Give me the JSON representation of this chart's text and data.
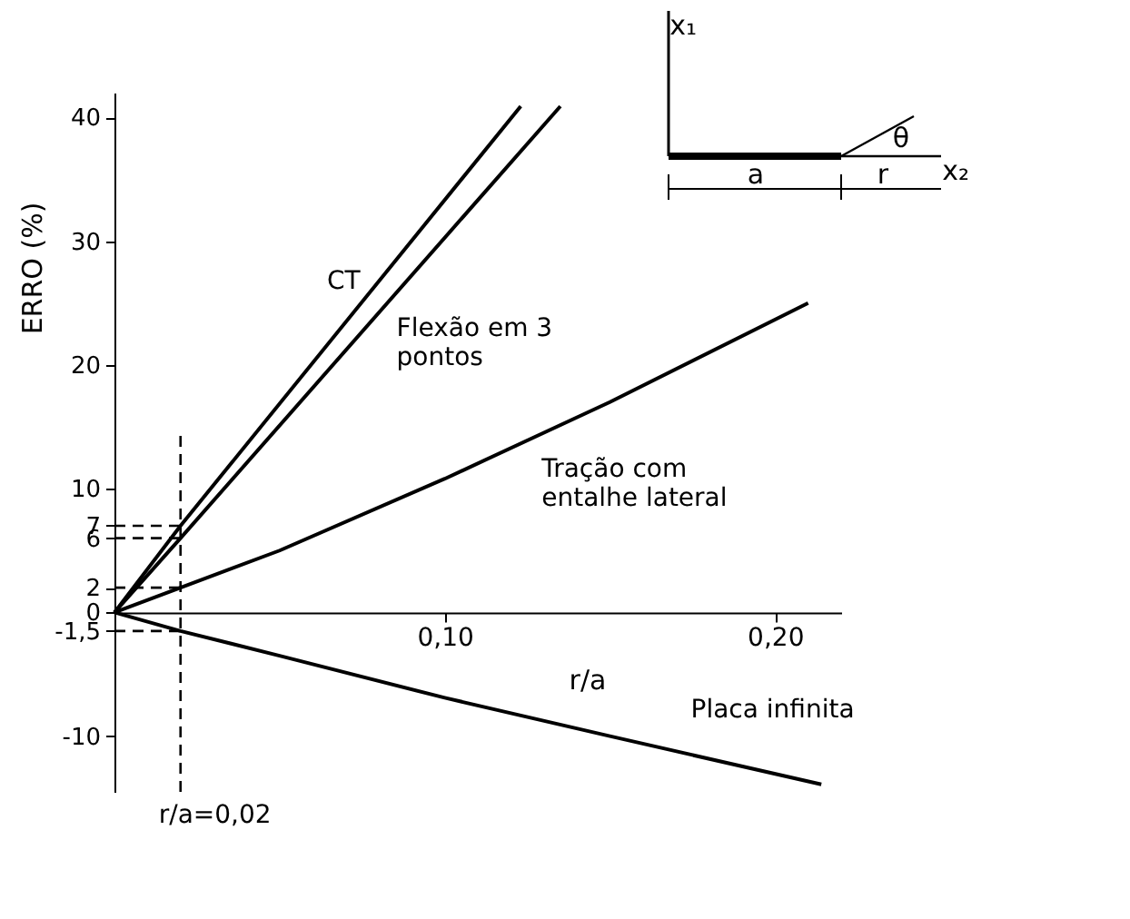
{
  "chart_data": {
    "type": "line",
    "xlabel": "r/a",
    "ylabel": "ERRO (%)",
    "xlim": [
      0,
      0.22
    ],
    "ylim": [
      -14.5,
      42
    ],
    "xticks": [
      {
        "value": 0.1,
        "label": "0,10"
      },
      {
        "value": 0.2,
        "label": "0,20"
      }
    ],
    "yticks": [
      -10,
      {
        "value": -1.5,
        "label": "-1,5"
      },
      0,
      2,
      6,
      7,
      10,
      20,
      30,
      40
    ],
    "series": [
      {
        "name": "CT",
        "color": "#000000",
        "x": [
          0,
          0.02,
          0.123
        ],
        "values": [
          0,
          7,
          40.9
        ]
      },
      {
        "name": "Flexão em 3 pontos",
        "color": "#000000",
        "x": [
          0,
          0.02,
          0.135
        ],
        "values": [
          0,
          6,
          40.9
        ]
      },
      {
        "name": "Tração com entalhe lateral",
        "color": "#000000",
        "x": [
          0,
          0.02,
          0.05,
          0.1,
          0.15,
          0.21
        ],
        "values": [
          0,
          2,
          5,
          10.8,
          17,
          25
        ]
      },
      {
        "name": "Placa infinita",
        "color": "#000000",
        "x": [
          0,
          0.02,
          0.05,
          0.1,
          0.15,
          0.214
        ],
        "values": [
          0,
          -1.5,
          -3.5,
          -6.9,
          -10,
          -13.9
        ]
      }
    ],
    "ref_lines": [
      {
        "axis": "y",
        "value": 7,
        "color": "#000000",
        "line_style": "dashed"
      },
      {
        "axis": "y",
        "value": 6,
        "color": "#000000",
        "line_style": "dashed"
      },
      {
        "axis": "y",
        "value": 2,
        "color": "#000000",
        "line_style": "dashed"
      },
      {
        "axis": "y",
        "value": -1.5,
        "color": "#000000",
        "line_style": "dashed"
      },
      {
        "axis": "x",
        "value": 0.02,
        "label": "r/a=0,02",
        "color": "#000000",
        "line_style": "dashed"
      }
    ],
    "annotations": [
      "x₁",
      "x₂",
      "θ",
      "a",
      "r"
    ],
    "grid": false,
    "marker": "none",
    "line_style": "solid"
  }
}
